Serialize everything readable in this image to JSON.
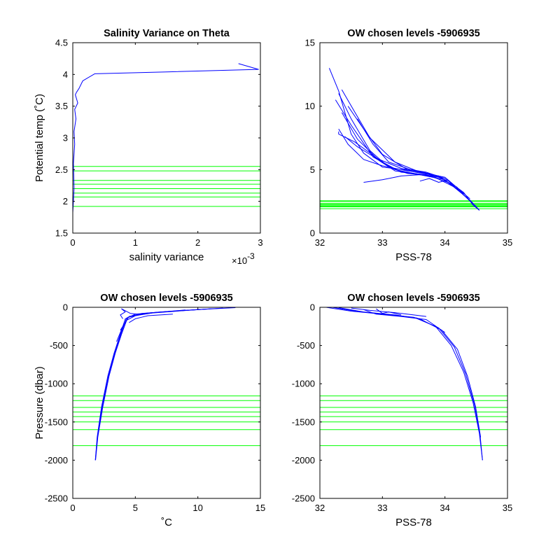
{
  "figure": {
    "background": "#ffffff",
    "profile_color": "#0000ff",
    "level_color": "#00ff00",
    "exponent_base": "×10",
    "exponent_power": "-3"
  },
  "chart_data": [
    {
      "id": "salinity-variance",
      "type": "line",
      "title": "Salinity Variance on Theta",
      "xlabel": "salinity variance",
      "ylabel": "Potential temp (˚C)",
      "xlim": [
        0,
        3
      ],
      "ylim": [
        1.5,
        4.5
      ],
      "xticks": [
        0,
        1,
        2,
        3
      ],
      "xtick_labels": [
        "0",
        "1",
        "2",
        "3"
      ],
      "yticks": [
        1.5,
        2,
        2.5,
        3,
        3.5,
        4,
        4.5
      ],
      "ytick_labels": [
        "1.5",
        "2",
        "2.5",
        "3",
        "3.5",
        "4",
        "4.5"
      ],
      "x_exponent": -3,
      "grid": false,
      "series": [
        {
          "values_x": [
            0,
            0.02,
            0.01,
            0.03,
            0.02,
            0.05,
            0.03,
            0.08,
            0.04,
            0.06,
            0.1,
            0.16,
            0.35,
            1.5,
            2.97,
            2.65
          ],
          "values_y": [
            1.82,
            2.2,
            2.6,
            2.9,
            3.1,
            3.3,
            3.45,
            3.55,
            3.68,
            3.72,
            3.78,
            3.9,
            4.01,
            4.04,
            4.08,
            4.17
          ]
        }
      ],
      "level_lines": [
        1.92,
        2.07,
        2.13,
        2.2,
        2.27,
        2.33,
        2.48,
        2.55
      ]
    },
    {
      "id": "theta-salinity",
      "type": "line",
      "title": "OW chosen levels -5906935",
      "xlabel": "PSS-78",
      "ylabel": "",
      "xlim": [
        32,
        35
      ],
      "ylim": [
        0,
        15
      ],
      "xticks": [
        32,
        33,
        34,
        35
      ],
      "xtick_labels": [
        "32",
        "33",
        "34",
        "35"
      ],
      "yticks": [
        0,
        5,
        10,
        15
      ],
      "ytick_labels": [
        "0",
        "5",
        "10",
        "15"
      ],
      "grid": false,
      "series": [
        {
          "values_x": [
            32.15,
            32.3,
            32.4,
            32.5,
            32.7,
            33.0,
            33.5,
            34.0,
            34.3,
            34.45,
            34.55
          ],
          "values_y": [
            13.0,
            11.2,
            9.5,
            7.8,
            6.3,
            5.2,
            4.9,
            4.3,
            3.2,
            2.2,
            1.8
          ]
        },
        {
          "values_x": [
            32.3,
            32.5,
            32.8,
            33.1,
            33.4,
            33.8,
            34.2,
            34.45,
            34.55
          ],
          "values_y": [
            11.0,
            9.0,
            6.5,
            5.2,
            4.7,
            4.5,
            3.5,
            2.3,
            1.8
          ]
        },
        {
          "values_x": [
            32.25,
            32.5,
            32.85,
            33.2,
            33.6,
            34.0,
            34.4,
            34.55
          ],
          "values_y": [
            10.5,
            8.5,
            6.0,
            5.0,
            4.6,
            4.2,
            2.6,
            1.8
          ]
        },
        {
          "values_x": [
            32.3,
            32.3,
            32.55,
            33.0,
            33.3,
            33.7,
            34.1,
            34.45
          ],
          "values_y": [
            8.0,
            7.8,
            7.2,
            5.6,
            4.8,
            4.6,
            3.9,
            2.3
          ]
        },
        {
          "values_x": [
            32.4,
            32.6,
            32.9,
            33.3,
            33.6,
            34.0,
            34.4
          ],
          "values_y": [
            7.6,
            6.8,
            5.9,
            5.1,
            4.8,
            4.4,
            2.7
          ]
        },
        {
          "values_x": [
            32.35,
            32.6,
            32.95,
            33.2,
            33.5,
            33.8
          ],
          "values_y": [
            9.5,
            7.4,
            5.7,
            4.9,
            4.7,
            4.5
          ]
        },
        {
          "values_x": [
            32.7,
            33.0,
            33.3,
            33.6,
            33.9,
            34.2
          ],
          "values_y": [
            4.0,
            4.2,
            4.5,
            4.6,
            4.4,
            3.6
          ]
        },
        {
          "values_x": [
            32.45,
            32.7,
            33.0,
            33.4,
            33.7,
            34.0
          ],
          "values_y": [
            10.0,
            8.2,
            6.2,
            5.0,
            4.8,
            4.3
          ]
        },
        {
          "values_x": [
            32.6,
            32.85,
            33.1,
            33.45,
            33.7
          ],
          "values_y": [
            9.0,
            7.0,
            5.6,
            5.0,
            4.8
          ]
        },
        {
          "values_x": [
            32.3,
            32.45,
            32.7,
            33.0,
            33.4,
            33.9
          ],
          "values_y": [
            8.2,
            7.0,
            5.8,
            5.3,
            4.9,
            4.5
          ]
        },
        {
          "values_x": [
            33.6,
            33.75,
            33.9,
            34.05
          ],
          "values_y": [
            4.1,
            4.3,
            4.0,
            4.2
          ]
        },
        {
          "values_x": [
            32.35,
            32.55,
            32.8,
            33.2,
            33.55,
            33.9,
            34.3
          ],
          "values_y": [
            11.3,
            9.6,
            7.5,
            5.6,
            4.9,
            4.5,
            3.1
          ]
        }
      ],
      "level_lines": [
        1.92,
        2.07,
        2.13,
        2.2,
        2.27,
        2.33,
        2.48,
        2.55
      ]
    },
    {
      "id": "pressure-temperature",
      "type": "line",
      "title": "OW chosen levels -5906935",
      "xlabel": "˚C",
      "ylabel": "Pressure (dbar)",
      "xlim": [
        0,
        15
      ],
      "ylim": [
        -2500,
        0
      ],
      "xticks": [
        0,
        5,
        10,
        15
      ],
      "xtick_labels": [
        "0",
        "5",
        "10",
        "15"
      ],
      "yticks": [
        -2500,
        -2000,
        -1500,
        -1000,
        -500,
        0
      ],
      "ytick_labels": [
        "-2500",
        "-2000",
        "-1500",
        "-1000",
        "-500",
        "0"
      ],
      "grid": false,
      "series": [
        {
          "values_x": [
            1.8,
            1.95,
            2.3,
            2.8,
            3.3,
            3.8,
            4.2,
            5.0,
            7.0,
            10.0,
            13.0
          ],
          "values_y": [
            -2000,
            -1700,
            -1300,
            -900,
            -600,
            -350,
            -150,
            -90,
            -60,
            -30,
            -5
          ]
        },
        {
          "values_x": [
            1.8,
            1.97,
            2.35,
            2.85,
            3.35,
            3.85,
            4.3,
            5.5,
            8.0,
            11.0
          ],
          "values_y": [
            -2000,
            -1700,
            -1300,
            -900,
            -600,
            -350,
            -140,
            -80,
            -50,
            -20
          ]
        },
        {
          "values_x": [
            1.82,
            2.0,
            2.4,
            2.9,
            3.4,
            3.9,
            4.4,
            6.0,
            9.0,
            12.0
          ],
          "values_y": [
            -2000,
            -1700,
            -1300,
            -900,
            -600,
            -350,
            -130,
            -75,
            -40,
            -10
          ]
        },
        {
          "values_x": [
            3.5,
            4.0,
            4.5,
            5.5,
            7.5,
            10.5
          ],
          "values_y": [
            -450,
            -250,
            -120,
            -85,
            -60,
            -25
          ]
        },
        {
          "values_x": [
            3.8,
            4.3,
            5.0,
            6.5,
            9.0
          ],
          "values_y": [
            -300,
            -170,
            -110,
            -70,
            -35
          ]
        },
        {
          "values_x": [
            4.0,
            3.8,
            4.2,
            3.9,
            4.6,
            5.5,
            6.5
          ],
          "values_y": [
            -150,
            -100,
            -60,
            -20,
            -80,
            -95,
            -70
          ]
        },
        {
          "values_x": [
            4.5,
            5.0,
            5.5,
            6.0,
            7.0,
            8.0
          ],
          "values_y": [
            -200,
            -150,
            -130,
            -110,
            -100,
            -90
          ]
        }
      ],
      "level_lines": [
        -1160,
        -1220,
        -1310,
        -1370,
        -1430,
        -1500,
        -1600,
        -1810
      ]
    },
    {
      "id": "pressure-salinity",
      "type": "line",
      "title": "OW chosen levels -5906935",
      "xlabel": "PSS-78",
      "ylabel": "",
      "xlim": [
        32,
        35
      ],
      "ylim": [
        -2500,
        0
      ],
      "xticks": [
        32,
        33,
        34,
        35
      ],
      "xtick_labels": [
        "32",
        "33",
        "34",
        "35"
      ],
      "yticks": [
        -2500,
        -2000,
        -1500,
        -1000,
        -500,
        0
      ],
      "ytick_labels": [
        "-2500",
        "-2000",
        "-1500",
        "-1000",
        "-500",
        "0"
      ],
      "grid": false,
      "series": [
        {
          "values_x": [
            32.1,
            32.5,
            33.0,
            33.5,
            33.85,
            34.1,
            34.3,
            34.45,
            34.55,
            34.6
          ],
          "values_y": [
            0,
            -50,
            -90,
            -130,
            -250,
            -500,
            -850,
            -1250,
            -1650,
            -2000
          ]
        },
        {
          "values_x": [
            32.2,
            32.6,
            33.1,
            33.55,
            33.9,
            34.15,
            34.33,
            34.47,
            34.56,
            34.6
          ],
          "values_y": [
            0,
            -55,
            -95,
            -140,
            -270,
            -520,
            -870,
            -1270,
            -1660,
            -2000
          ]
        },
        {
          "values_x": [
            32.3,
            32.7,
            33.2,
            33.6,
            33.95,
            34.2,
            34.36,
            34.49,
            34.57
          ],
          "values_y": [
            -5,
            -60,
            -100,
            -150,
            -300,
            -550,
            -900,
            -1300,
            -1700
          ]
        },
        {
          "values_x": [
            32.5,
            32.8,
            33.2,
            33.5,
            33.7
          ],
          "values_y": [
            -10,
            -40,
            -70,
            -100,
            -120
          ]
        },
        {
          "values_x": [
            32.9,
            33.0,
            33.1,
            33.3
          ],
          "values_y": [
            -20,
            -80,
            -60,
            -100
          ]
        },
        {
          "values_x": [
            32.7,
            32.9,
            33.3,
            33.7,
            34.0
          ],
          "values_y": [
            -30,
            -90,
            -120,
            -160,
            -330
          ]
        }
      ],
      "level_lines": [
        -1160,
        -1220,
        -1310,
        -1370,
        -1430,
        -1500,
        -1600,
        -1810
      ]
    }
  ]
}
